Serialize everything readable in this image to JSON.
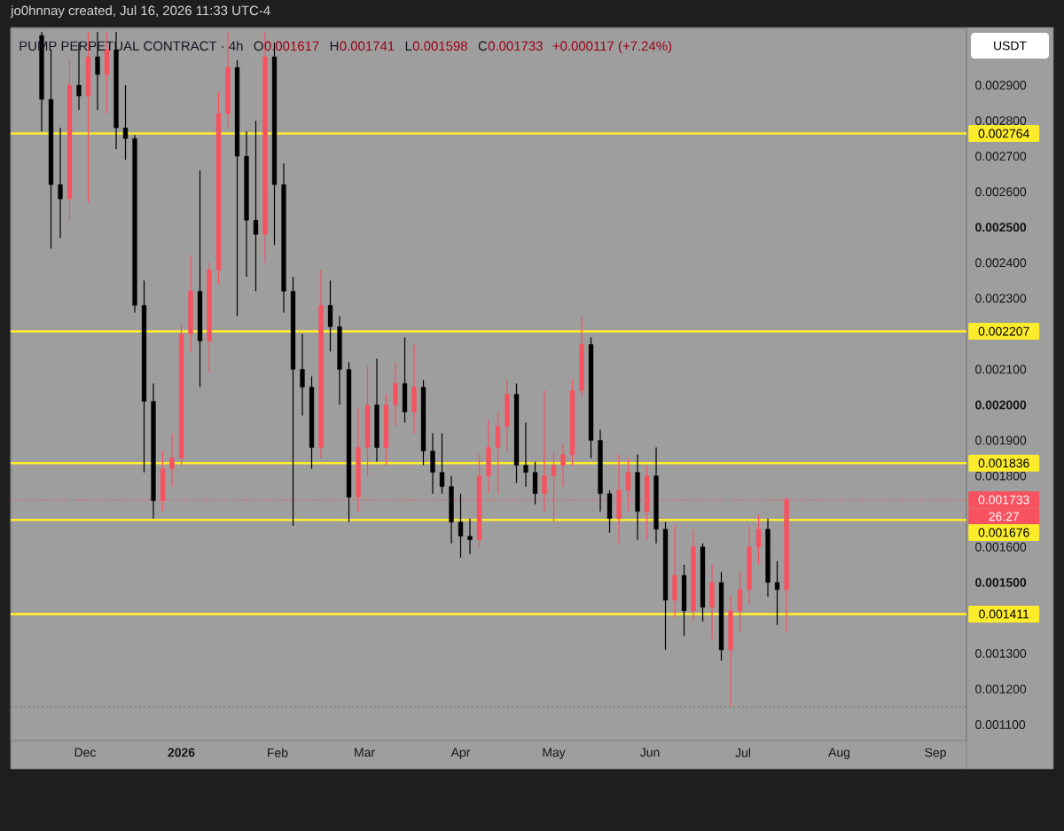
{
  "chart_data": {
    "type": "candlestick",
    "title": "PUMP PERPETUAL CONTRACT · 4h",
    "subtitle": "+0.000117 (+7.24%)",
    "ylabel": "USDT",
    "annotations": [
      "jo0hnnay created, Jul 16, 2026 11:33 UTC-4",
      "26:27",
      "O",
      "0.001617",
      "H",
      "0.001741",
      "L",
      "0.001598",
      "C",
      "0.001733"
    ],
    "x": [
      "2025-11-17",
      "2025-11-20",
      "2025-11-23",
      "2025-11-26",
      "2025-11-29",
      "2025-12-02",
      "2025-12-05",
      "2025-12-08",
      "2025-12-11",
      "2025-12-14",
      "2025-12-17",
      "2025-12-20",
      "2025-12-23",
      "2025-12-26",
      "2025-12-29",
      "2026-01-01",
      "2026-01-04",
      "2026-01-07",
      "2026-01-10",
      "2026-01-13",
      "2026-01-16",
      "2026-01-19",
      "2026-01-22",
      "2026-01-25",
      "2026-01-28",
      "2026-01-31",
      "2026-02-03",
      "2026-02-06",
      "2026-02-09",
      "2026-02-12",
      "2026-02-15",
      "2026-02-18",
      "2026-02-21",
      "2026-02-24",
      "2026-02-27",
      "2026-03-02",
      "2026-03-05",
      "2026-03-08",
      "2026-03-11",
      "2026-03-14",
      "2026-03-17",
      "2026-03-20",
      "2026-03-23",
      "2026-03-26",
      "2026-03-29",
      "2026-04-01",
      "2026-04-04",
      "2026-04-07",
      "2026-04-10",
      "2026-04-13",
      "2026-04-16",
      "2026-04-19",
      "2026-04-22",
      "2026-04-25",
      "2026-04-28",
      "2026-05-01",
      "2026-05-04",
      "2026-05-07",
      "2026-05-10",
      "2026-05-13",
      "2026-05-16",
      "2026-05-19",
      "2026-05-22",
      "2026-05-25",
      "2026-05-28",
      "2026-05-31",
      "2026-06-03",
      "2026-06-06",
      "2026-06-09",
      "2026-06-12",
      "2026-06-15",
      "2026-06-18",
      "2026-06-21",
      "2026-06-24",
      "2026-06-27",
      "2026-06-30",
      "2026-07-03",
      "2026-07-06",
      "2026-07-09",
      "2026-07-12",
      "2026-07-15"
    ],
    "ohlc": [
      [
        0.00304,
        0.00305,
        0.00277,
        0.00286
      ],
      [
        0.00286,
        0.003,
        0.00244,
        0.00262
      ],
      [
        0.00262,
        0.00278,
        0.00247,
        0.00258
      ],
      [
        0.00258,
        0.00297,
        0.00252,
        0.0029
      ],
      [
        0.0029,
        0.00302,
        0.00283,
        0.00287
      ],
      [
        0.00287,
        0.00305,
        0.00257,
        0.00298
      ],
      [
        0.00298,
        0.00305,
        0.00283,
        0.00293
      ],
      [
        0.00293,
        0.00305,
        0.00282,
        0.003
      ],
      [
        0.003,
        0.00305,
        0.00272,
        0.00278
      ],
      [
        0.00278,
        0.0029,
        0.00269,
        0.00275
      ],
      [
        0.00275,
        0.00276,
        0.00226,
        0.00228
      ],
      [
        0.00228,
        0.00235,
        0.00181,
        0.00201
      ],
      [
        0.00201,
        0.00206,
        0.00168,
        0.00173
      ],
      [
        0.00173,
        0.00187,
        0.0017,
        0.00182
      ],
      [
        0.00182,
        0.00192,
        0.00177,
        0.00185
      ],
      [
        0.00185,
        0.00223,
        0.00183,
        0.0022
      ],
      [
        0.0022,
        0.00242,
        0.00215,
        0.00232
      ],
      [
        0.00232,
        0.00266,
        0.00205,
        0.00218
      ],
      [
        0.00218,
        0.0024,
        0.00209,
        0.00238
      ],
      [
        0.00238,
        0.00288,
        0.00234,
        0.00282
      ],
      [
        0.00282,
        0.00305,
        0.00278,
        0.00295
      ],
      [
        0.00295,
        0.00297,
        0.00225,
        0.0027
      ],
      [
        0.0027,
        0.00277,
        0.00236,
        0.00252
      ],
      [
        0.00252,
        0.0028,
        0.00232,
        0.00248
      ],
      [
        0.00248,
        0.00305,
        0.0024,
        0.00298
      ],
      [
        0.00298,
        0.00302,
        0.00245,
        0.00262
      ],
      [
        0.00262,
        0.00268,
        0.00226,
        0.00232
      ],
      [
        0.00232,
        0.00236,
        0.00166,
        0.0021
      ],
      [
        0.0021,
        0.0022,
        0.00197,
        0.00205
      ],
      [
        0.00205,
        0.00208,
        0.00182,
        0.00188
      ],
      [
        0.00188,
        0.00238,
        0.00185,
        0.00228
      ],
      [
        0.00228,
        0.00235,
        0.00215,
        0.00222
      ],
      [
        0.00222,
        0.00225,
        0.002,
        0.0021
      ],
      [
        0.0021,
        0.00212,
        0.00167,
        0.00174
      ],
      [
        0.00174,
        0.00199,
        0.0017,
        0.00188
      ],
      [
        0.00188,
        0.00211,
        0.0018,
        0.002
      ],
      [
        0.002,
        0.00213,
        0.00184,
        0.00188
      ],
      [
        0.00188,
        0.00203,
        0.00183,
        0.002
      ],
      [
        0.002,
        0.00212,
        0.00194,
        0.00206
      ],
      [
        0.00206,
        0.00219,
        0.00195,
        0.00198
      ],
      [
        0.00198,
        0.00217,
        0.00192,
        0.00205
      ],
      [
        0.00205,
        0.00207,
        0.00183,
        0.00187
      ],
      [
        0.00187,
        0.00192,
        0.00175,
        0.00181
      ],
      [
        0.00181,
        0.00192,
        0.00175,
        0.00177
      ],
      [
        0.00177,
        0.0018,
        0.00161,
        0.00167
      ],
      [
        0.00167,
        0.00175,
        0.00157,
        0.00163
      ],
      [
        0.00163,
        0.00168,
        0.00158,
        0.00162
      ],
      [
        0.00162,
        0.00186,
        0.0016,
        0.0018
      ],
      [
        0.0018,
        0.00196,
        0.00175,
        0.00188
      ],
      [
        0.00188,
        0.00198,
        0.00175,
        0.00194
      ],
      [
        0.00194,
        0.00207,
        0.00187,
        0.00203
      ],
      [
        0.00203,
        0.00206,
        0.00178,
        0.00183
      ],
      [
        0.00183,
        0.00195,
        0.00177,
        0.00181
      ],
      [
        0.00181,
        0.00184,
        0.00172,
        0.00175
      ],
      [
        0.00175,
        0.00204,
        0.0017,
        0.0018
      ],
      [
        0.0018,
        0.00187,
        0.00167,
        0.00183
      ],
      [
        0.00183,
        0.00189,
        0.00177,
        0.00186
      ],
      [
        0.00186,
        0.00207,
        0.00183,
        0.00204
      ],
      [
        0.00204,
        0.00225,
        0.00202,
        0.00217
      ],
      [
        0.00217,
        0.00219,
        0.00185,
        0.0019
      ],
      [
        0.0019,
        0.00193,
        0.0017,
        0.00175
      ],
      [
        0.00175,
        0.00176,
        0.00164,
        0.00168
      ],
      [
        0.00168,
        0.00186,
        0.00161,
        0.00176
      ],
      [
        0.00176,
        0.00185,
        0.0017,
        0.00181
      ],
      [
        0.00181,
        0.00186,
        0.00162,
        0.0017
      ],
      [
        0.0017,
        0.00183,
        0.00162,
        0.0018
      ],
      [
        0.0018,
        0.00188,
        0.00161,
        0.00165
      ],
      [
        0.00165,
        0.00167,
        0.00131,
        0.00145
      ],
      [
        0.00145,
        0.00166,
        0.0014,
        0.00152
      ],
      [
        0.00152,
        0.00155,
        0.00135,
        0.00142
      ],
      [
        0.00142,
        0.00165,
        0.00139,
        0.0016
      ],
      [
        0.0016,
        0.00161,
        0.00139,
        0.00143
      ],
      [
        0.00143,
        0.00155,
        0.00134,
        0.0015
      ],
      [
        0.0015,
        0.00153,
        0.00128,
        0.00131
      ],
      [
        0.00131,
        0.00146,
        0.00115,
        0.00142
      ],
      [
        0.00142,
        0.00153,
        0.00136,
        0.00148
      ],
      [
        0.00148,
        0.00166,
        0.00144,
        0.0016
      ],
      [
        0.0016,
        0.00169,
        0.00155,
        0.00165
      ],
      [
        0.00165,
        0.00168,
        0.00146,
        0.0015
      ],
      [
        0.0015,
        0.00156,
        0.00138,
        0.00148
      ],
      [
        0.00148,
        0.001741,
        0.00136,
        0.001733
      ]
    ],
    "colors": [
      "#000000",
      "#000000",
      "#000000",
      "#f7525f",
      "#000000",
      "#f7525f",
      "#000000",
      "#f7525f",
      "#000000",
      "#000000",
      "#000000",
      "#000000",
      "#000000",
      "#f7525f",
      "#f7525f",
      "#f7525f",
      "#f7525f",
      "#000000",
      "#f7525f",
      "#f7525f",
      "#f7525f",
      "#000000",
      "#000000",
      "#000000",
      "#f7525f",
      "#000000",
      "#000000",
      "#000000",
      "#000000",
      "#000000",
      "#f7525f",
      "#000000",
      "#000000",
      "#000000",
      "#f7525f",
      "#f7525f",
      "#000000",
      "#f7525f",
      "#f7525f",
      "#000000",
      "#f7525f",
      "#000000",
      "#000000",
      "#000000",
      "#000000",
      "#000000",
      "#000000",
      "#f7525f",
      "#f7525f",
      "#f7525f",
      "#f7525f",
      "#000000",
      "#000000",
      "#000000",
      "#f7525f",
      "#f7525f",
      "#f7525f",
      "#f7525f",
      "#f7525f",
      "#000000",
      "#000000",
      "#000000",
      "#f7525f",
      "#f7525f",
      "#000000",
      "#f7525f",
      "#000000",
      "#000000",
      "#f7525f",
      "#000000",
      "#f7525f",
      "#000000",
      "#f7525f",
      "#000000",
      "#f7525f",
      "#f7525f",
      "#f7525f",
      "#f7525f",
      "#000000",
      "#000000",
      "#f7525f"
    ],
    "xlim": [
      "2025-11-07",
      "2026-09-11"
    ],
    "xticks": [
      {
        "value": "2025-12-01",
        "label": "Dec"
      },
      {
        "value": "2026-01-01",
        "label": "**2026**"
      },
      {
        "value": "2026-02-01",
        "label": "Feb"
      },
      {
        "value": "2026-03-01",
        "label": "Mar"
      },
      {
        "value": "2026-04-01",
        "label": "Apr"
      },
      {
        "value": "2026-05-01",
        "label": "May"
      },
      {
        "value": "2026-06-01",
        "label": "Jun"
      },
      {
        "value": "2026-07-01",
        "label": "Jul"
      },
      {
        "value": "2026-08-01",
        "label": "Aug"
      },
      {
        "value": "2026-09-01",
        "label": "Sep"
      }
    ],
    "ylim": [
      0.001055,
      0.00306
    ],
    "yticks": [
      {
        "value": 0.0011,
        "label": "0.001100"
      },
      {
        "value": 0.0012,
        "label": "0.001200"
      },
      {
        "value": 0.0013,
        "label": "0.001300"
      },
      {
        "value": 0.0015,
        "label": "**0.001500**"
      },
      {
        "value": 0.0016,
        "label": "0.001600"
      },
      {
        "value": 0.0018,
        "label": "0.001800"
      },
      {
        "value": 0.0019,
        "label": "0.001900"
      },
      {
        "value": 0.002,
        "label": "**0.002000**"
      },
      {
        "value": 0.0021,
        "label": "0.002100"
      },
      {
        "value": 0.0023,
        "label": "0.002300"
      },
      {
        "value": 0.0024,
        "label": "0.002400"
      },
      {
        "value": 0.0025,
        "label": "**0.002500**"
      },
      {
        "value": 0.0026,
        "label": "0.002600"
      },
      {
        "value": 0.0027,
        "label": "0.002700"
      },
      {
        "value": 0.0028,
        "label": "0.002800"
      },
      {
        "value": 0.0029,
        "label": "0.002900"
      }
    ],
    "ref_lines": [
      {
        "axis": "y",
        "value": 0.002764,
        "label": "0.002764",
        "color": "#fdec2c"
      },
      {
        "axis": "y",
        "value": 0.002207,
        "label": "0.002207",
        "color": "#fdec2c"
      },
      {
        "axis": "y",
        "value": 0.001836,
        "label": "0.001836",
        "color": "#fdec2c"
      },
      {
        "axis": "y",
        "value": 0.001676,
        "label": "0.001676",
        "color": "#fdec2c"
      },
      {
        "axis": "y",
        "value": 0.001411,
        "label": "0.001411",
        "color": "#fdec2c"
      },
      {
        "axis": "y",
        "value": 0.001733,
        "label": "0.001733",
        "color": "#f7525f",
        "line_style": "dotted"
      },
      {
        "axis": "y",
        "value": 0.00115,
        "color": "#6f6f6f",
        "line_style": "dotted"
      }
    ]
  }
}
